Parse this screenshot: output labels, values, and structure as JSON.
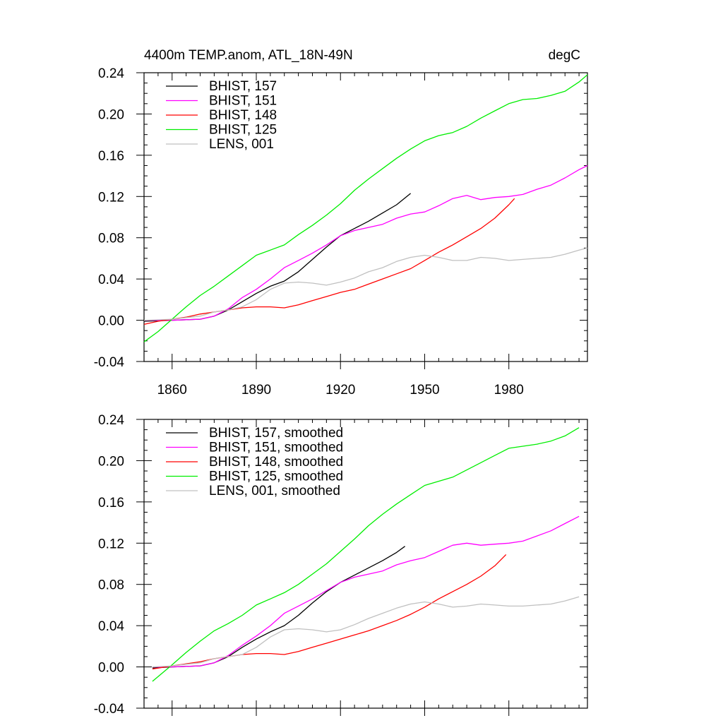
{
  "chart_data": [
    {
      "type": "line",
      "title_left": "4400m TEMP.anom, ATL_18N-49N",
      "title_right": "degC",
      "xlabel": "",
      "ylabel": "",
      "xlim": [
        1850,
        2008
      ],
      "ylim": [
        -0.04,
        0.24
      ],
      "x_ticks": [
        1860,
        1890,
        1920,
        1950,
        1980
      ],
      "x_tick_labels": [
        "1860",
        "1890",
        "1920",
        "1950",
        "1980"
      ],
      "y_ticks": [
        -0.04,
        0.0,
        0.04,
        0.08,
        0.12,
        0.16,
        0.2,
        0.24
      ],
      "y_tick_labels": [
        "-0.04",
        "0.00",
        "0.04",
        "0.08",
        "0.12",
        "0.16",
        "0.20",
        "0.24"
      ],
      "legend_position": "top-left",
      "series": [
        {
          "name": "BHIST, 157",
          "color": "#000000",
          "x": [
            1850,
            1860,
            1870,
            1875,
            1880,
            1885,
            1890,
            1895,
            1900,
            1905,
            1910,
            1915,
            1920,
            1925,
            1930,
            1935,
            1940,
            1945
          ],
          "y": [
            -0.001,
            0.0,
            0.001,
            0.004,
            0.01,
            0.018,
            0.026,
            0.033,
            0.038,
            0.047,
            0.059,
            0.071,
            0.082,
            0.089,
            0.096,
            0.104,
            0.112,
            0.123
          ]
        },
        {
          "name": "BHIST, 151",
          "color": "#ff00ff",
          "x": [
            1850,
            1860,
            1870,
            1875,
            1880,
            1885,
            1890,
            1895,
            1900,
            1905,
            1910,
            1915,
            1920,
            1925,
            1930,
            1935,
            1940,
            1945,
            1950,
            1955,
            1960,
            1965,
            1970,
            1975,
            1980,
            1985,
            1990,
            1995,
            2000,
            2005,
            2008
          ],
          "y": [
            0.0,
            0.0,
            0.001,
            0.004,
            0.011,
            0.022,
            0.03,
            0.04,
            0.051,
            0.058,
            0.065,
            0.073,
            0.082,
            0.087,
            0.09,
            0.093,
            0.099,
            0.103,
            0.105,
            0.111,
            0.118,
            0.121,
            0.117,
            0.119,
            0.12,
            0.122,
            0.127,
            0.131,
            0.138,
            0.146,
            0.15
          ]
        },
        {
          "name": "BHIST, 148",
          "color": "#ff0000",
          "x": [
            1850,
            1855,
            1860,
            1865,
            1870,
            1875,
            1880,
            1885,
            1890,
            1895,
            1900,
            1905,
            1910,
            1915,
            1920,
            1925,
            1930,
            1935,
            1940,
            1945,
            1950,
            1955,
            1960,
            1965,
            1970,
            1975,
            1980,
            1982
          ],
          "y": [
            -0.004,
            -0.001,
            0.001,
            0.003,
            0.006,
            0.008,
            0.01,
            0.012,
            0.013,
            0.013,
            0.012,
            0.015,
            0.019,
            0.023,
            0.027,
            0.03,
            0.035,
            0.04,
            0.045,
            0.05,
            0.058,
            0.066,
            0.073,
            0.081,
            0.089,
            0.099,
            0.112,
            0.118
          ]
        },
        {
          "name": "BHIST, 125",
          "color": "#00ee00",
          "x": [
            1850,
            1855,
            1860,
            1865,
            1870,
            1875,
            1880,
            1885,
            1890,
            1895,
            1900,
            1905,
            1910,
            1915,
            1920,
            1925,
            1930,
            1935,
            1940,
            1945,
            1950,
            1955,
            1960,
            1965,
            1970,
            1975,
            1980,
            1985,
            1990,
            1995,
            2000,
            2005,
            2008
          ],
          "y": [
            -0.021,
            -0.011,
            0.001,
            0.013,
            0.024,
            0.033,
            0.043,
            0.053,
            0.063,
            0.068,
            0.073,
            0.083,
            0.092,
            0.102,
            0.113,
            0.126,
            0.137,
            0.147,
            0.157,
            0.166,
            0.174,
            0.179,
            0.182,
            0.188,
            0.196,
            0.203,
            0.21,
            0.214,
            0.215,
            0.218,
            0.222,
            0.231,
            0.238
          ]
        },
        {
          "name": "LENS, 001",
          "color": "#c0c0c0",
          "x": [
            1850,
            1860,
            1870,
            1875,
            1880,
            1885,
            1890,
            1895,
            1900,
            1905,
            1910,
            1915,
            1920,
            1925,
            1930,
            1935,
            1940,
            1945,
            1950,
            1955,
            1960,
            1965,
            1970,
            1975,
            1980,
            1985,
            1990,
            1995,
            2000,
            2005,
            2008
          ],
          "y": [
            0.0,
            0.001,
            0.004,
            0.008,
            0.01,
            0.013,
            0.02,
            0.03,
            0.036,
            0.037,
            0.036,
            0.034,
            0.037,
            0.041,
            0.047,
            0.051,
            0.057,
            0.061,
            0.063,
            0.061,
            0.058,
            0.058,
            0.061,
            0.06,
            0.058,
            0.059,
            0.06,
            0.061,
            0.064,
            0.068,
            0.07
          ]
        }
      ]
    },
    {
      "type": "line",
      "xlabel": "",
      "ylabel": "",
      "xlim": [
        1850,
        2008
      ],
      "ylim": [
        -0.04,
        0.24
      ],
      "x_ticks": [
        1860,
        1890,
        1920,
        1950,
        1980
      ],
      "y_ticks": [
        -0.04,
        0.0,
        0.04,
        0.08,
        0.12,
        0.16,
        0.2,
        0.24
      ],
      "y_tick_labels": [
        "-0.04",
        "0.00",
        "0.04",
        "0.08",
        "0.12",
        "0.16",
        "0.20",
        "0.24"
      ],
      "legend_position": "top-left",
      "series": [
        {
          "name": "BHIST, 157, smoothed",
          "color": "#000000",
          "x": [
            1853,
            1860,
            1870,
            1875,
            1880,
            1885,
            1890,
            1895,
            1900,
            1905,
            1910,
            1915,
            1920,
            1925,
            1930,
            1935,
            1940,
            1943
          ],
          "y": [
            -0.001,
            0.0,
            0.001,
            0.004,
            0.01,
            0.019,
            0.027,
            0.034,
            0.04,
            0.05,
            0.062,
            0.073,
            0.082,
            0.089,
            0.096,
            0.103,
            0.111,
            0.117
          ]
        },
        {
          "name": "BHIST, 151, smoothed",
          "color": "#ff00ff",
          "x": [
            1853,
            1860,
            1870,
            1875,
            1880,
            1885,
            1890,
            1895,
            1900,
            1905,
            1910,
            1915,
            1920,
            1925,
            1930,
            1935,
            1940,
            1945,
            1950,
            1955,
            1960,
            1965,
            1970,
            1975,
            1980,
            1985,
            1990,
            1995,
            2000,
            2005
          ],
          "y": [
            0.0,
            0.0,
            0.001,
            0.004,
            0.011,
            0.021,
            0.03,
            0.04,
            0.052,
            0.059,
            0.066,
            0.074,
            0.082,
            0.087,
            0.09,
            0.093,
            0.099,
            0.103,
            0.106,
            0.112,
            0.118,
            0.12,
            0.118,
            0.119,
            0.12,
            0.122,
            0.127,
            0.132,
            0.139,
            0.146
          ]
        },
        {
          "name": "BHIST, 148, smoothed",
          "color": "#ff0000",
          "x": [
            1853,
            1860,
            1865,
            1870,
            1875,
            1880,
            1885,
            1890,
            1895,
            1900,
            1905,
            1910,
            1915,
            1920,
            1925,
            1930,
            1935,
            1940,
            1945,
            1950,
            1955,
            1960,
            1965,
            1970,
            1975,
            1979
          ],
          "y": [
            -0.002,
            0.001,
            0.003,
            0.005,
            0.008,
            0.01,
            0.012,
            0.013,
            0.013,
            0.012,
            0.015,
            0.019,
            0.023,
            0.027,
            0.031,
            0.035,
            0.04,
            0.045,
            0.051,
            0.058,
            0.066,
            0.073,
            0.08,
            0.088,
            0.098,
            0.109
          ]
        },
        {
          "name": "BHIST, 125, smoothed",
          "color": "#00ee00",
          "x": [
            1853,
            1860,
            1865,
            1870,
            1875,
            1880,
            1885,
            1890,
            1895,
            1900,
            1905,
            1910,
            1915,
            1920,
            1925,
            1930,
            1935,
            1940,
            1945,
            1950,
            1955,
            1960,
            1965,
            1970,
            1975,
            1980,
            1985,
            1990,
            1995,
            2000,
            2005
          ],
          "y": [
            -0.014,
            0.002,
            0.014,
            0.025,
            0.035,
            0.042,
            0.05,
            0.06,
            0.066,
            0.072,
            0.08,
            0.09,
            0.1,
            0.112,
            0.124,
            0.137,
            0.148,
            0.158,
            0.167,
            0.176,
            0.18,
            0.184,
            0.191,
            0.198,
            0.205,
            0.212,
            0.214,
            0.216,
            0.219,
            0.224,
            0.232
          ]
        },
        {
          "name": "LENS, 001, smoothed",
          "color": "#c0c0c0",
          "x": [
            1853,
            1860,
            1870,
            1875,
            1880,
            1885,
            1890,
            1895,
            1900,
            1905,
            1910,
            1915,
            1920,
            1925,
            1930,
            1935,
            1940,
            1945,
            1950,
            1955,
            1960,
            1965,
            1970,
            1975,
            1980,
            1985,
            1990,
            1995,
            2000,
            2005
          ],
          "y": [
            0.0,
            0.001,
            0.004,
            0.008,
            0.01,
            0.012,
            0.019,
            0.029,
            0.036,
            0.037,
            0.036,
            0.034,
            0.036,
            0.041,
            0.047,
            0.052,
            0.057,
            0.061,
            0.063,
            0.061,
            0.058,
            0.059,
            0.061,
            0.06,
            0.059,
            0.059,
            0.06,
            0.061,
            0.064,
            0.068
          ]
        }
      ]
    }
  ]
}
